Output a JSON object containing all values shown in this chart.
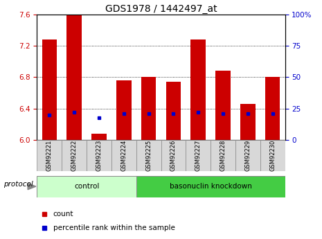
{
  "title": "GDS1978 / 1442497_at",
  "samples": [
    "GSM92221",
    "GSM92222",
    "GSM92223",
    "GSM92224",
    "GSM92225",
    "GSM92226",
    "GSM92227",
    "GSM92228",
    "GSM92229",
    "GSM92230"
  ],
  "bar_heights": [
    7.28,
    7.6,
    6.08,
    6.76,
    6.8,
    6.74,
    7.28,
    6.88,
    6.46,
    6.8
  ],
  "blue_dot_values": [
    6.32,
    6.35,
    6.28,
    6.33,
    6.33,
    6.33,
    6.35,
    6.33,
    6.33,
    6.33
  ],
  "y_min": 6.0,
  "y_max": 7.6,
  "y_ticks": [
    6.0,
    6.4,
    6.8,
    7.2,
    7.6
  ],
  "y_right_ticks": [
    0,
    25,
    50,
    75,
    100
  ],
  "bar_color": "#cc0000",
  "dot_color": "#0000cc",
  "control_color": "#ccffcc",
  "knockdown_color": "#44cc44",
  "tick_color_left": "#cc0000",
  "tick_color_right": "#0000cc",
  "bar_width": 0.6,
  "title_fontsize": 10,
  "tick_fontsize": 7.5,
  "label_fontsize": 7.5,
  "legend_fontsize": 7.5,
  "control_label": "control",
  "knockdown_label": "basonuclin knockdown",
  "protocol_label": "protocol",
  "legend_count": "count",
  "legend_percentile": "percentile rank within the sample"
}
